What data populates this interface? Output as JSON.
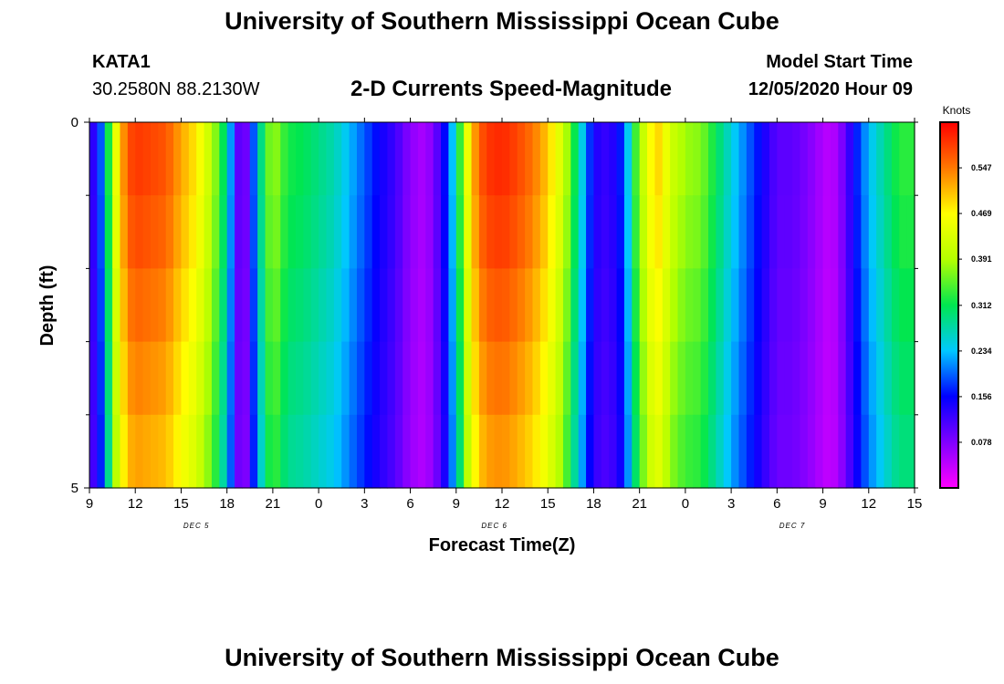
{
  "header": {
    "title": "University of Southern Mississippi Ocean Cube",
    "station_id": "KATA1",
    "station_coords": "30.2580N 88.2130W",
    "chart_subtitle": "2-D Currents Speed-Magnitude",
    "model_start_label": "Model Start Time",
    "model_start_value": "12/05/2020 Hour 09"
  },
  "footer": {
    "title": "University of Southern Mississippi Ocean Cube"
  },
  "chart_data": {
    "type": "heatmap",
    "title": "2-D Currents Speed-Magnitude",
    "xlabel": "Forecast Time(Z)",
    "ylabel": "Depth (ft)",
    "x_range_hours": [
      0,
      54
    ],
    "x_start": "12/05/2020 09Z",
    "x_tick_labels": [
      "9",
      "12",
      "15",
      "18",
      "21",
      "0",
      "3",
      "6",
      "9",
      "12",
      "15",
      "18",
      "21",
      "0",
      "3",
      "6",
      "9",
      "12",
      "15"
    ],
    "date_labels": [
      {
        "label": "DEC 5",
        "hour": 7
      },
      {
        "label": "DEC 6",
        "hour": 26.5
      },
      {
        "label": "DEC 7",
        "hour": 46
      }
    ],
    "y_range": [
      0,
      5
    ],
    "y_tick_labels": [
      "0",
      "5"
    ],
    "colorbar": {
      "unit": "Knots",
      "range": [
        0,
        0.625
      ],
      "tick_values": [
        0.078,
        0.156,
        0.234,
        0.312,
        0.391,
        0.469,
        0.547
      ],
      "tick_labels": [
        "0.078",
        "0.156",
        "0.234",
        "0.312",
        "0.391",
        "0.469",
        "0.547"
      ]
    },
    "depth_layers": [
      0,
      1,
      2,
      3,
      4,
      5
    ],
    "speed_profile_hours": [
      0,
      0.5,
      1,
      1.5,
      2,
      2.5,
      3,
      4,
      5,
      6,
      7,
      8,
      9,
      9.5,
      10,
      10.5,
      11,
      11.5,
      12,
      12.5,
      13,
      14,
      15,
      16,
      17,
      18,
      19,
      20,
      21,
      22,
      23,
      24,
      24.5,
      25,
      25.5,
      26,
      27,
      28,
      29,
      30,
      31,
      32,
      33,
      34,
      35,
      35.5,
      36,
      36.5,
      37,
      37.5,
      38,
      38.5,
      39,
      40,
      41,
      42,
      43,
      44,
      45,
      46,
      47,
      48,
      48.5,
      49,
      49.5,
      50,
      51,
      52,
      53,
      54
    ],
    "speed_profile_knots": [
      0.12,
      0.14,
      0.24,
      0.4,
      0.5,
      0.57,
      0.59,
      0.58,
      0.57,
      0.52,
      0.48,
      0.4,
      0.28,
      0.15,
      0.05,
      0.13,
      0.25,
      0.33,
      0.39,
      0.35,
      0.32,
      0.31,
      0.29,
      0.27,
      0.23,
      0.19,
      0.15,
      0.12,
      0.07,
      0.05,
      0.12,
      0.27,
      0.4,
      0.5,
      0.56,
      0.59,
      0.6,
      0.58,
      0.55,
      0.5,
      0.42,
      0.28,
      0.14,
      0.12,
      0.18,
      0.3,
      0.38,
      0.44,
      0.5,
      0.48,
      0.42,
      0.4,
      0.38,
      0.37,
      0.31,
      0.25,
      0.2,
      0.15,
      0.1,
      0.1,
      0.08,
      0.05,
      0.04,
      0.06,
      0.1,
      0.15,
      0.23,
      0.28,
      0.33,
      0.33
    ],
    "depth_factor": [
      1.0,
      0.98,
      0.95,
      0.92,
      0.89,
      0.86
    ]
  }
}
